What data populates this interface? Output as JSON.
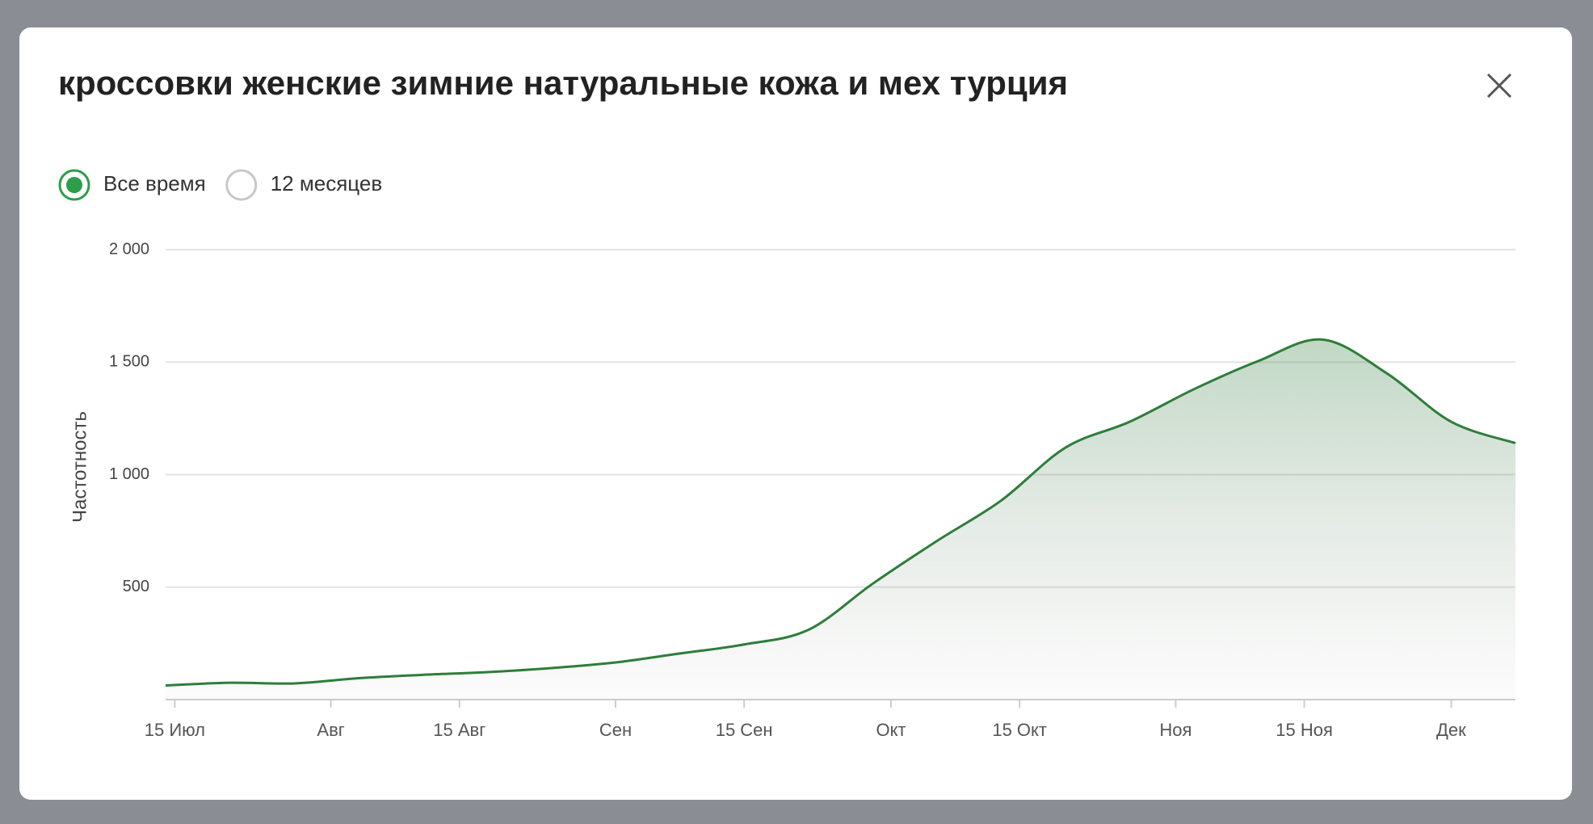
{
  "controls": {
    "options": [
      {
        "label": "Все время",
        "selected": true
      },
      {
        "label": "12 месяцев",
        "selected": false
      }
    ]
  },
  "chart_data": {
    "type": "area",
    "title": "кроссовки женские зимние натуральные кожа и мех турция",
    "y_label": "Частотность",
    "color": "#2e7d3a",
    "grid": true,
    "x": [
      -1,
      6,
      13,
      20,
      27,
      34,
      41,
      48,
      55,
      62,
      69,
      76,
      83,
      90,
      97,
      104,
      111,
      118,
      125,
      132,
      139,
      146
    ],
    "values": [
      63,
      75,
      72,
      95,
      110,
      122,
      140,
      165,
      205,
      245,
      310,
      515,
      705,
      885,
      1120,
      1235,
      1380,
      1505,
      1600,
      1450,
      1235,
      1140
    ],
    "xlim": [
      -1,
      146
    ],
    "xticks": [
      {
        "value": 0,
        "label": "15 Июл"
      },
      {
        "value": 17,
        "label": "Авг"
      },
      {
        "value": 31,
        "label": "15 Авг"
      },
      {
        "value": 48,
        "label": "Сен"
      },
      {
        "value": 62,
        "label": "15 Сен"
      },
      {
        "value": 78,
        "label": "Окт"
      },
      {
        "value": 92,
        "label": "15 Окт"
      },
      {
        "value": 109,
        "label": "Ноя"
      },
      {
        "value": 123,
        "label": "15 Ноя"
      },
      {
        "value": 139,
        "label": "Дек"
      }
    ],
    "ylim": [
      0,
      2000
    ],
    "yticks": [
      {
        "value": 500,
        "label": "500"
      },
      {
        "value": 1000,
        "label": "1 000"
      },
      {
        "value": 1500,
        "label": "1 500"
      },
      {
        "value": 2000,
        "label": "2 000"
      }
    ]
  }
}
